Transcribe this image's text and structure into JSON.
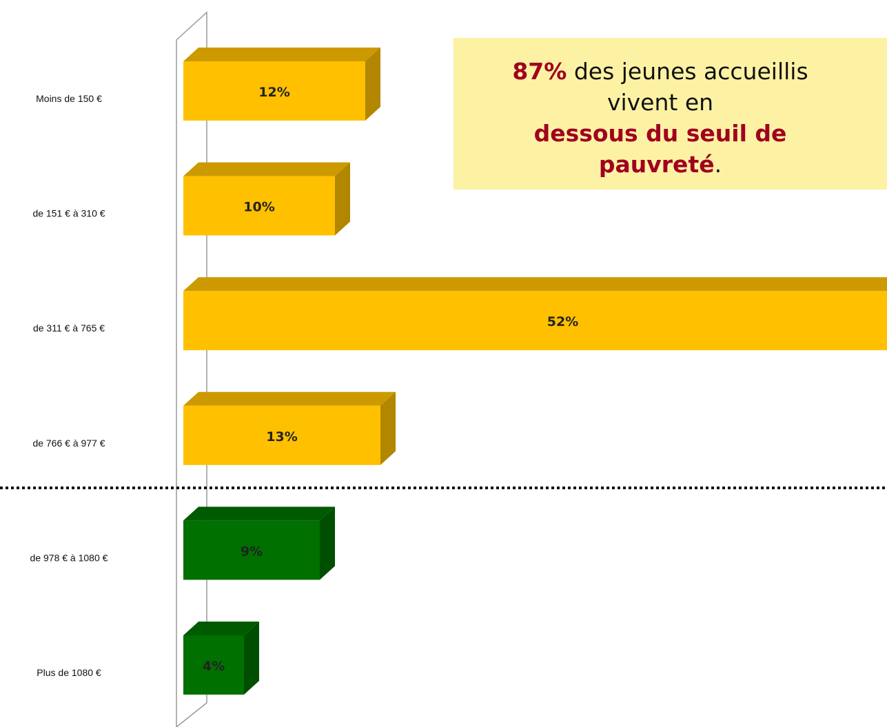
{
  "chart_data": {
    "type": "bar",
    "orientation": "horizontal",
    "categories": [
      "Moins de 150 €",
      "de 151 € à 310 €",
      "de 311 € à 765 €",
      "de 766 € à 977 €",
      "de 978 € à 1080 €",
      "Plus de 1080 €"
    ],
    "values": [
      12,
      10,
      52,
      13,
      9,
      4
    ],
    "value_labels": [
      "12%",
      "10%",
      "52%",
      "13%",
      "9%",
      "4%"
    ],
    "colors": [
      "#ffc000",
      "#ffc000",
      "#ffc000",
      "#ffc000",
      "#007000",
      "#007000"
    ],
    "annotation": {
      "lines": [
        [
          {
            "text": "87%",
            "bold": true
          },
          {
            "text": " des jeunes accueillis",
            "bold": false
          }
        ],
        [
          {
            "text": "vivent en",
            "bold": false
          }
        ],
        [
          {
            "text": "dessous du seuil de",
            "bold": true
          }
        ],
        [
          {
            "text": "pauvreté",
            "bold": true
          },
          {
            "text": ".",
            "bold": false
          }
        ]
      ]
    }
  }
}
